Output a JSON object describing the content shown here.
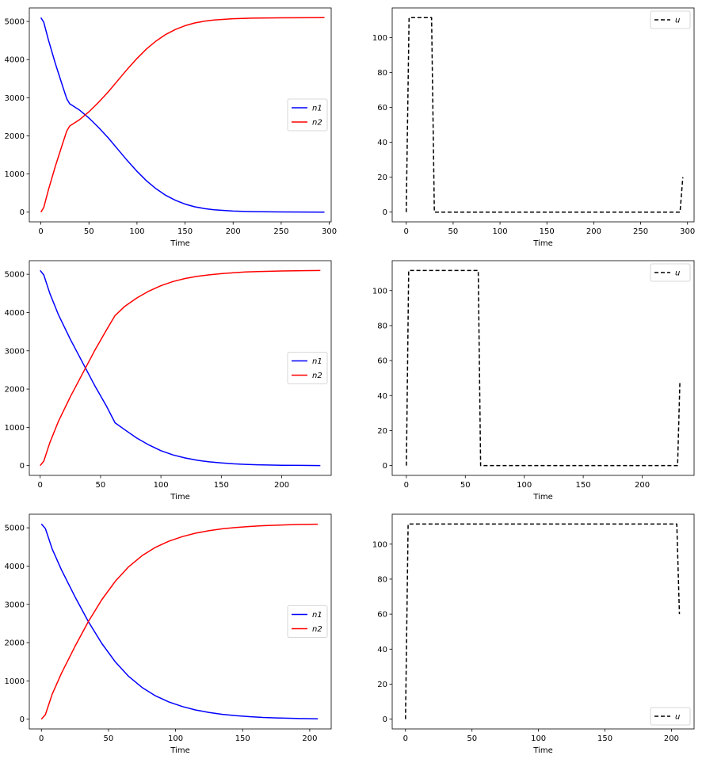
{
  "chart_data": [
    {
      "type": "line",
      "xlabel": "Time",
      "ylabel": "",
      "xlim": [
        -12,
        302
      ],
      "ylim": [
        -255,
        5355
      ],
      "xticks": [
        0,
        50,
        100,
        150,
        200,
        250,
        300
      ],
      "yticks": [
        0,
        1000,
        2000,
        3000,
        4000,
        5000
      ],
      "legend_loc": "center-right",
      "series": [
        {
          "name": "n1",
          "color": "#0000ff",
          "dash": "",
          "x": [
            0,
            3,
            8,
            15,
            22,
            27,
            30,
            40,
            50,
            60,
            70,
            80,
            90,
            100,
            110,
            120,
            130,
            140,
            150,
            160,
            170,
            180,
            200,
            220,
            250,
            295
          ],
          "y": [
            5100,
            4980,
            4500,
            3900,
            3350,
            2970,
            2840,
            2680,
            2470,
            2220,
            1950,
            1650,
            1350,
            1070,
            820,
            610,
            440,
            310,
            210,
            140,
            95,
            62,
            28,
            12,
            4,
            0
          ]
        },
        {
          "name": "n2",
          "color": "#ff0000",
          "dash": "",
          "x": [
            0,
            3,
            8,
            15,
            22,
            27,
            30,
            40,
            50,
            60,
            70,
            80,
            90,
            100,
            110,
            120,
            130,
            140,
            150,
            160,
            170,
            180,
            200,
            220,
            250,
            295
          ],
          "y": [
            0,
            120,
            600,
            1200,
            1750,
            2130,
            2260,
            2420,
            2630,
            2880,
            3150,
            3450,
            3750,
            4030,
            4280,
            4490,
            4660,
            4790,
            4890,
            4960,
            5005,
            5038,
            5072,
            5088,
            5096,
            5100
          ]
        }
      ]
    },
    {
      "type": "line",
      "xlabel": "Time",
      "ylabel": "",
      "xlim": [
        -15,
        307
      ],
      "ylim": [
        -5.6,
        117.1
      ],
      "xticks": [
        0,
        50,
        100,
        150,
        200,
        250,
        300
      ],
      "yticks": [
        0,
        20,
        40,
        60,
        80,
        100
      ],
      "legend_loc": "top-right",
      "series": [
        {
          "name": "u",
          "color": "#000000",
          "dash": "5,3",
          "x": [
            0,
            3,
            27,
            30,
            292,
            295
          ],
          "y": [
            0,
            111.5,
            111.5,
            0,
            0,
            20
          ]
        }
      ]
    },
    {
      "type": "line",
      "xlabel": "Time",
      "ylabel": "",
      "xlim": [
        -9,
        241
      ],
      "ylim": [
        -255,
        5355
      ],
      "xticks": [
        0,
        50,
        100,
        150,
        200
      ],
      "yticks": [
        0,
        1000,
        2000,
        3000,
        4000,
        5000
      ],
      "legend_loc": "center-right",
      "series": [
        {
          "name": "n1",
          "color": "#0000ff",
          "dash": "",
          "x": [
            0,
            3,
            8,
            15,
            25,
            35,
            45,
            55,
            62,
            70,
            80,
            90,
            100,
            110,
            120,
            130,
            140,
            150,
            160,
            170,
            180,
            200,
            232
          ],
          "y": [
            5100,
            4980,
            4500,
            3950,
            3300,
            2700,
            2100,
            1550,
            1120,
            940,
            720,
            540,
            390,
            280,
            200,
            140,
            100,
            70,
            48,
            33,
            22,
            10,
            2
          ]
        },
        {
          "name": "n2",
          "color": "#ff0000",
          "dash": "",
          "x": [
            0,
            3,
            8,
            15,
            25,
            35,
            45,
            55,
            62,
            70,
            80,
            90,
            100,
            110,
            120,
            130,
            140,
            150,
            160,
            170,
            180,
            200,
            232
          ],
          "y": [
            0,
            120,
            600,
            1150,
            1800,
            2400,
            3000,
            3550,
            3920,
            4160,
            4380,
            4560,
            4700,
            4810,
            4890,
            4945,
            4985,
            5015,
            5040,
            5058,
            5070,
            5085,
            5098
          ]
        }
      ]
    },
    {
      "type": "line",
      "xlabel": "Time",
      "ylabel": "",
      "xlim": [
        -12,
        244
      ],
      "ylim": [
        -5.6,
        117.1
      ],
      "xticks": [
        0,
        50,
        100,
        150,
        200
      ],
      "yticks": [
        0,
        20,
        40,
        60,
        80,
        100
      ],
      "legend_loc": "top-right",
      "series": [
        {
          "name": "u",
          "color": "#000000",
          "dash": "5,3",
          "x": [
            0,
            2,
            61,
            63,
            230,
            232
          ],
          "y": [
            0,
            111.5,
            111.5,
            0,
            0,
            48
          ]
        }
      ]
    },
    {
      "type": "line",
      "xlabel": "Time",
      "ylabel": "",
      "xlim": [
        -9,
        216
      ],
      "ylim": [
        -255,
        5355
      ],
      "xticks": [
        0,
        50,
        100,
        150,
        200
      ],
      "yticks": [
        0,
        1000,
        2000,
        3000,
        4000,
        5000
      ],
      "legend_loc": "center-right",
      "series": [
        {
          "name": "n1",
          "color": "#0000ff",
          "dash": "",
          "x": [
            0,
            3,
            8,
            15,
            25,
            35,
            45,
            55,
            65,
            75,
            85,
            95,
            105,
            115,
            125,
            135,
            145,
            155,
            165,
            175,
            190,
            206
          ],
          "y": [
            5100,
            4980,
            4450,
            3900,
            3200,
            2550,
            1980,
            1500,
            1120,
            830,
            610,
            450,
            330,
            240,
            175,
            125,
            90,
            65,
            46,
            32,
            18,
            8
          ]
        },
        {
          "name": "n2",
          "color": "#ff0000",
          "dash": "",
          "x": [
            0,
            3,
            8,
            15,
            25,
            35,
            45,
            55,
            65,
            75,
            85,
            95,
            105,
            115,
            125,
            135,
            145,
            155,
            165,
            175,
            190,
            206
          ],
          "y": [
            0,
            120,
            650,
            1200,
            1900,
            2550,
            3120,
            3600,
            3980,
            4270,
            4490,
            4650,
            4770,
            4860,
            4925,
            4975,
            5010,
            5035,
            5055,
            5068,
            5085,
            5095
          ]
        }
      ]
    },
    {
      "type": "line",
      "xlabel": "Time",
      "ylabel": "",
      "xlim": [
        -10,
        217
      ],
      "ylim": [
        -5.6,
        117.1
      ],
      "xticks": [
        0,
        50,
        100,
        150,
        200
      ],
      "yticks": [
        0,
        20,
        40,
        60,
        80,
        100
      ],
      "legend_loc": "bottom-right",
      "series": [
        {
          "name": "u",
          "color": "#000000",
          "dash": "5,3",
          "x": [
            0,
            2,
            204,
            206
          ],
          "y": [
            0,
            111.5,
            111.5,
            60
          ]
        }
      ]
    }
  ]
}
